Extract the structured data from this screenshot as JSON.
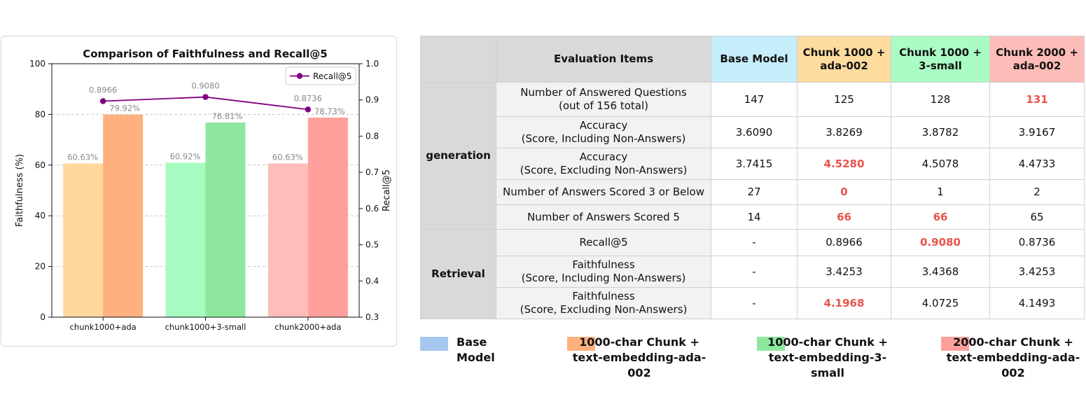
{
  "chart_data": {
    "type": "bar",
    "title": "Comparison of Faithfulness and Recall@5",
    "categories": [
      "chunk1000+ada",
      "chunk1000+3-small",
      "chunk2000+ada"
    ],
    "ylabel": "Faithfulness (%)",
    "y2label": "Recall@5",
    "ylim": [
      0,
      100
    ],
    "y2lim": [
      0.3,
      1.0
    ],
    "yticks": [
      "0",
      "20",
      "40",
      "60",
      "80",
      "100"
    ],
    "y2ticks": [
      "0.3",
      "0.4",
      "0.5",
      "0.6",
      "0.7",
      "0.8",
      "0.9",
      "1.0"
    ],
    "grid": "horizontal dashed",
    "legend": "top-right",
    "bar_series": [
      {
        "values": [
          60.63,
          60.92,
          60.63
        ],
        "labels": [
          "60.63%",
          "60.92%",
          "60.63%"
        ],
        "colors": [
          "#fed79c",
          "#a6fcc0",
          "#febdba"
        ]
      },
      {
        "values": [
          79.92,
          76.81,
          78.73
        ],
        "labels": [
          "79.92%",
          "76.81%",
          "78.73%"
        ],
        "colors": [
          "#feb07e",
          "#8de89e",
          "#fe9f9b"
        ]
      }
    ],
    "line_series": {
      "name": "Recall@5",
      "values": [
        0.8966,
        0.908,
        0.8736
      ],
      "labels": [
        "0.8966",
        "0.9080",
        "0.8736"
      ],
      "color": "#800080"
    }
  },
  "table": {
    "headers": [
      {
        "text": "",
        "bg": "#d9d9d9"
      },
      {
        "text": "Evaluation Items",
        "bg": "#d9d9d9"
      },
      {
        "text": "Base Model",
        "bg": "#c5edfc"
      },
      {
        "text": "Chunk 1000 +\nada-002",
        "bg": "#fedb9e"
      },
      {
        "text": "Chunk 1000 +\n3-small",
        "bg": "#aafcc4"
      },
      {
        "text": "Chunk 2000 +\nada-002",
        "bg": "#febcb8"
      }
    ],
    "sections": [
      {
        "name": "generation",
        "rows": [
          {
            "item": "Number of Answered Questions\n(out of 156 total)",
            "values": [
              "147",
              "125",
              "128",
              "131"
            ],
            "highlight": [
              false,
              false,
              false,
              true
            ]
          },
          {
            "item": "Accuracy\n(Score, Including Non-Answers)",
            "values": [
              "3.6090",
              "3.8269",
              "3.8782",
              "3.9167"
            ],
            "highlight": [
              false,
              false,
              false,
              false
            ]
          },
          {
            "item": "Accuracy\n(Score, Excluding Non-Answers)",
            "values": [
              "3.7415",
              "4.5280",
              "4.5078",
              "4.4733"
            ],
            "highlight": [
              false,
              true,
              false,
              false
            ]
          },
          {
            "item": "Number of Answers Scored 3 or Below",
            "values": [
              "27",
              "0",
              "1",
              "2"
            ],
            "highlight": [
              false,
              true,
              false,
              false
            ]
          },
          {
            "item": "Number of Answers Scored 5",
            "values": [
              "14",
              "66",
              "66",
              "65"
            ],
            "highlight": [
              false,
              true,
              true,
              false
            ]
          }
        ]
      },
      {
        "name": "Retrieval",
        "rows": [
          {
            "item": "Recall@5",
            "values": [
              "-",
              "0.8966",
              "0.9080",
              "0.8736"
            ],
            "highlight": [
              false,
              false,
              true,
              false
            ]
          },
          {
            "item": "Faithfulness\n(Score, Including Non-Answers)",
            "values": [
              "-",
              "3.4253",
              "3.4368",
              "3.4253"
            ],
            "highlight": [
              false,
              false,
              false,
              false
            ]
          },
          {
            "item": "Faithfulness\n(Score, Excluding Non-Answers)",
            "values": [
              "-",
              "4.1968",
              "4.0725",
              "4.1493"
            ],
            "highlight": [
              false,
              true,
              false,
              false
            ]
          }
        ]
      }
    ]
  },
  "legend": [
    {
      "label": "Base Model",
      "color": "#a6c8f0"
    },
    {
      "label": "1000-char Chunk +\ntext-embedding-ada-002",
      "color": "#feb07e"
    },
    {
      "label": "1000-char Chunk +\ntext-embedding-3-small",
      "color": "#8de89e"
    },
    {
      "label": "2000-char Chunk +\ntext-embedding-ada-002",
      "color": "#fe9f9b"
    }
  ]
}
